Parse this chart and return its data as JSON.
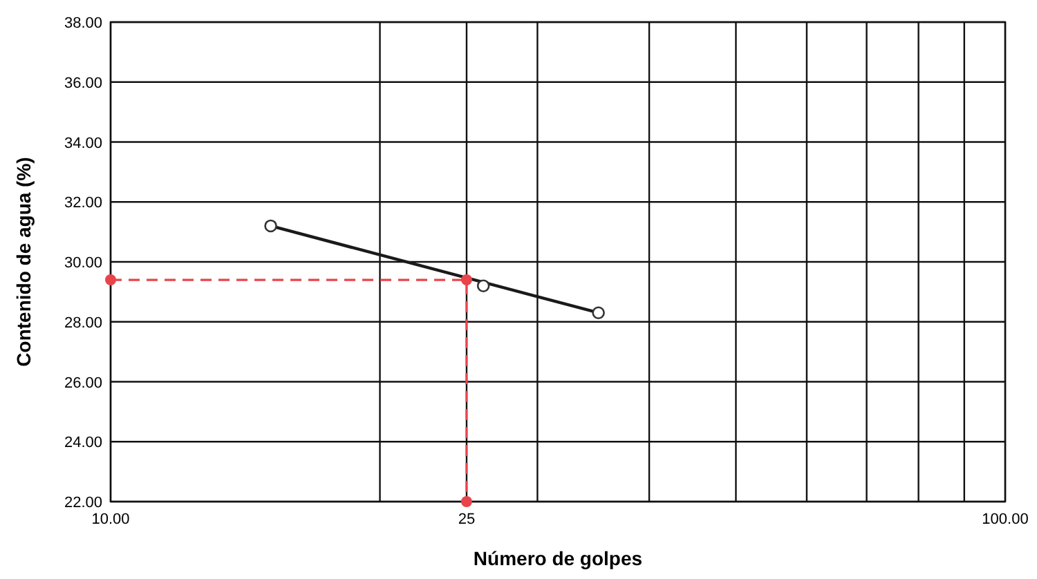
{
  "chart_data": {
    "type": "scatter",
    "xlabel": "Número de golpes",
    "ylabel": "Contenido de agua (%)",
    "log": "x",
    "grid": true,
    "xlim": [
      10,
      100
    ],
    "xticks": [
      {
        "value": 10,
        "label": "10.00"
      },
      {
        "value": 20,
        "label": null
      },
      {
        "value": 25,
        "label": "25"
      },
      {
        "value": 30,
        "label": null
      },
      {
        "value": 40,
        "label": null
      },
      {
        "value": 50,
        "label": null
      },
      {
        "value": 60,
        "label": null
      },
      {
        "value": 70,
        "label": null
      },
      {
        "value": 80,
        "label": null
      },
      {
        "value": 90,
        "label": null
      },
      {
        "value": 100,
        "label": "100.00"
      }
    ],
    "ylim": [
      22,
      38
    ],
    "yticks": [
      {
        "value": 22,
        "label": "22.00"
      },
      {
        "value": 24,
        "label": "24.00"
      },
      {
        "value": 26,
        "label": "26.00"
      },
      {
        "value": 28,
        "label": "28.00"
      },
      {
        "value": 30,
        "label": "30.00"
      },
      {
        "value": 32,
        "label": "32.00"
      },
      {
        "value": 34,
        "label": "34.00"
      },
      {
        "value": 36,
        "label": "36.00"
      },
      {
        "value": 38,
        "label": "38.00"
      }
    ],
    "series": [
      {
        "type": "line",
        "color": "#1a1a1a",
        "x": [
          15.1,
          35.1
        ],
        "values": [
          31.2,
          28.3
        ],
        "marker": "none",
        "line_style": "solid"
      },
      {
        "type": "scatter",
        "color": "#333333",
        "x": [
          15.1,
          26.1,
          35.1
        ],
        "values": [
          31.2,
          29.2,
          28.3
        ],
        "marker": "circle"
      },
      {
        "type": "line",
        "color": "#e8444a",
        "x": [
          10,
          25,
          25
        ],
        "values": [
          29.4,
          29.4,
          22
        ],
        "marker": "circle",
        "line_style": "dashed"
      }
    ]
  }
}
